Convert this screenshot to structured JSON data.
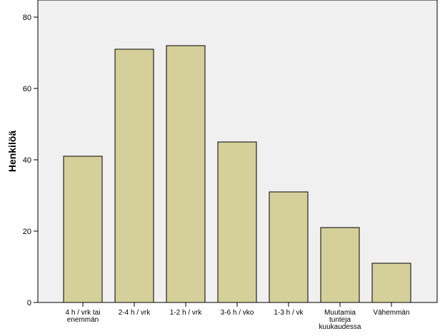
{
  "chart_data": {
    "type": "bar",
    "ylabel": "Henkilöä",
    "xlabel": "",
    "ylim": [
      0,
      85
    ],
    "yticks": [
      0,
      20,
      40,
      60,
      80
    ],
    "categories": [
      [
        "4 h / vrk tai",
        "enemmän"
      ],
      [
        "2-4 h / vrk"
      ],
      [
        "1-2 h / vrk"
      ],
      [
        "3-6 h / vko"
      ],
      [
        "1-3 h / vk"
      ],
      [
        "Muutamia",
        "tunteja",
        "kuukaudessa"
      ],
      [
        "Vähemmän"
      ]
    ],
    "values": [
      41,
      71,
      72,
      45,
      31,
      21,
      11
    ],
    "colors": {
      "bar_fill": "#d5cf9a",
      "bar_stroke": "#000000",
      "plot_background": "#f0f0f0",
      "page_background": "#ffffff"
    },
    "grid": false
  }
}
